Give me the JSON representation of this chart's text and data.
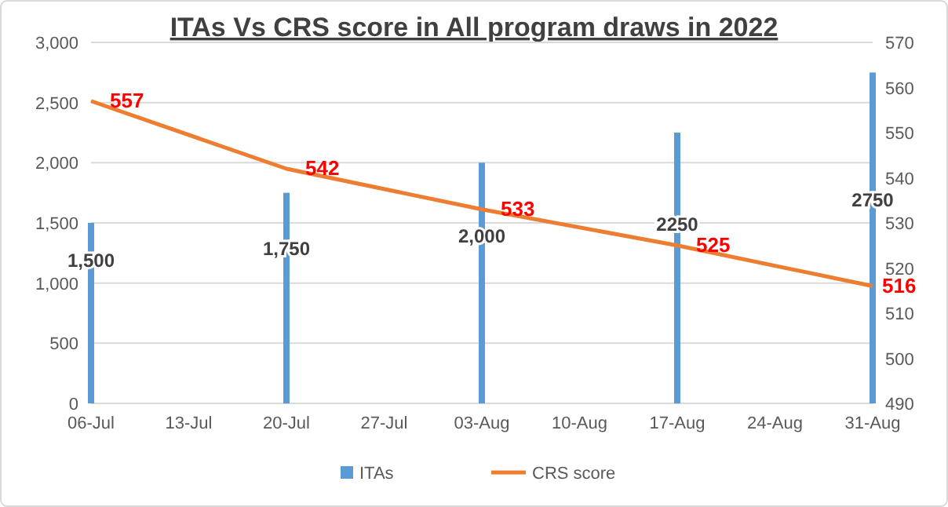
{
  "chart_data": {
    "type": "bar",
    "title": "ITAs Vs CRS score in All program draws in 2022",
    "x": [
      "2022-07-06",
      "2022-07-20",
      "2022-08-03",
      "2022-08-17",
      "2022-08-31"
    ],
    "xlim": [
      "2022-07-06",
      "2022-08-31"
    ],
    "xticks": [
      {
        "value": "2022-07-06",
        "label": "06-Jul"
      },
      {
        "value": "2022-07-13",
        "label": "13-Jul"
      },
      {
        "value": "2022-07-20",
        "label": "20-Jul"
      },
      {
        "value": "2022-07-27",
        "label": "27-Jul"
      },
      {
        "value": "2022-08-03",
        "label": "03-Aug"
      },
      {
        "value": "2022-08-10",
        "label": "10-Aug"
      },
      {
        "value": "2022-08-17",
        "label": "17-Aug"
      },
      {
        "value": "2022-08-24",
        "label": "24-Aug"
      },
      {
        "value": "2022-08-31",
        "label": "31-Aug"
      }
    ],
    "ylim": [
      0,
      3000
    ],
    "yticks": [
      {
        "value": 0,
        "label": "0"
      },
      {
        "value": 500,
        "label": "500"
      },
      {
        "value": 1000,
        "label": "1,000"
      },
      {
        "value": 1500,
        "label": "1,500"
      },
      {
        "value": 2000,
        "label": "2,000"
      },
      {
        "value": 2500,
        "label": "2,500"
      },
      {
        "value": 3000,
        "label": "3,000"
      }
    ],
    "y2lim": [
      490,
      570
    ],
    "y2ticks": [
      490,
      500,
      510,
      520,
      530,
      540,
      550,
      560,
      570
    ],
    "series": [
      {
        "name": "ITAs",
        "type": "bar",
        "color": "#5b9bd5",
        "values": [
          1500,
          1750,
          2000,
          2250,
          2750
        ],
        "value_labels": [
          "1,500",
          "1,750",
          "2,000",
          "2250",
          "2750"
        ]
      },
      {
        "name": "CRS score",
        "type": "line",
        "axis": "y2",
        "color": "#ed7d31",
        "values": [
          557,
          542,
          533,
          525,
          516
        ],
        "value_labels": [
          "557",
          "542",
          "533",
          "525",
          "516"
        ]
      }
    ],
    "grid": "y",
    "legend": "bottom",
    "marker": "none"
  }
}
